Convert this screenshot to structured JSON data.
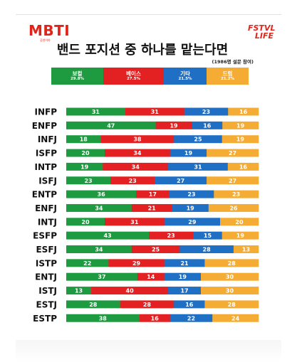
{
  "header": {
    "logo_left": "MBTI",
    "logo_left_sub": "공연이야",
    "logo_right_line1": "FSTVL",
    "logo_right_line2": "LIFE"
  },
  "chart_data": {
    "type": "bar",
    "title": "밴드 포지션 중 하나를 맡는다면",
    "subtitle": "(1986명 설문 참여)",
    "legend": [
      {
        "name": "보컬",
        "pct": "29.8%",
        "color": "#1e9b41"
      },
      {
        "name": "베이스",
        "pct": "27.5%",
        "color": "#e32122"
      },
      {
        "name": "기타",
        "pct": "21.5%",
        "color": "#1f6fc4"
      },
      {
        "name": "드럼",
        "pct": "21.2%",
        "color": "#f5ac35"
      }
    ],
    "series": [
      {
        "name": "보컬",
        "color": "#1e9b41",
        "values": [
          31,
          47,
          18,
          20,
          19,
          23,
          36,
          34,
          20,
          43,
          34,
          22,
          37,
          13,
          28,
          38
        ]
      },
      {
        "name": "베이스",
        "color": "#e32122",
        "values": [
          31,
          19,
          38,
          34,
          34,
          23,
          17,
          21,
          31,
          23,
          25,
          29,
          14,
          40,
          28,
          16
        ]
      },
      {
        "name": "기타",
        "color": "#1f6fc4",
        "values": [
          23,
          16,
          25,
          19,
          31,
          27,
          23,
          19,
          29,
          15,
          28,
          21,
          19,
          17,
          16,
          22
        ]
      },
      {
        "name": "드럼",
        "color": "#f5ac35",
        "values": [
          16,
          19,
          19,
          27,
          16,
          27,
          23,
          26,
          20,
          19,
          13,
          28,
          30,
          30,
          28,
          24
        ]
      }
    ],
    "categories": [
      "INFP",
      "ENFP",
      "INFJ",
      "ISFP",
      "INTP",
      "ISFJ",
      "ENTP",
      "ENFJ",
      "INTJ",
      "ESFP",
      "ESFJ",
      "ISTP",
      "ENTJ",
      "ISTJ",
      "ESTJ",
      "ESTP"
    ],
    "stacked": true,
    "orientation": "horizontal"
  }
}
